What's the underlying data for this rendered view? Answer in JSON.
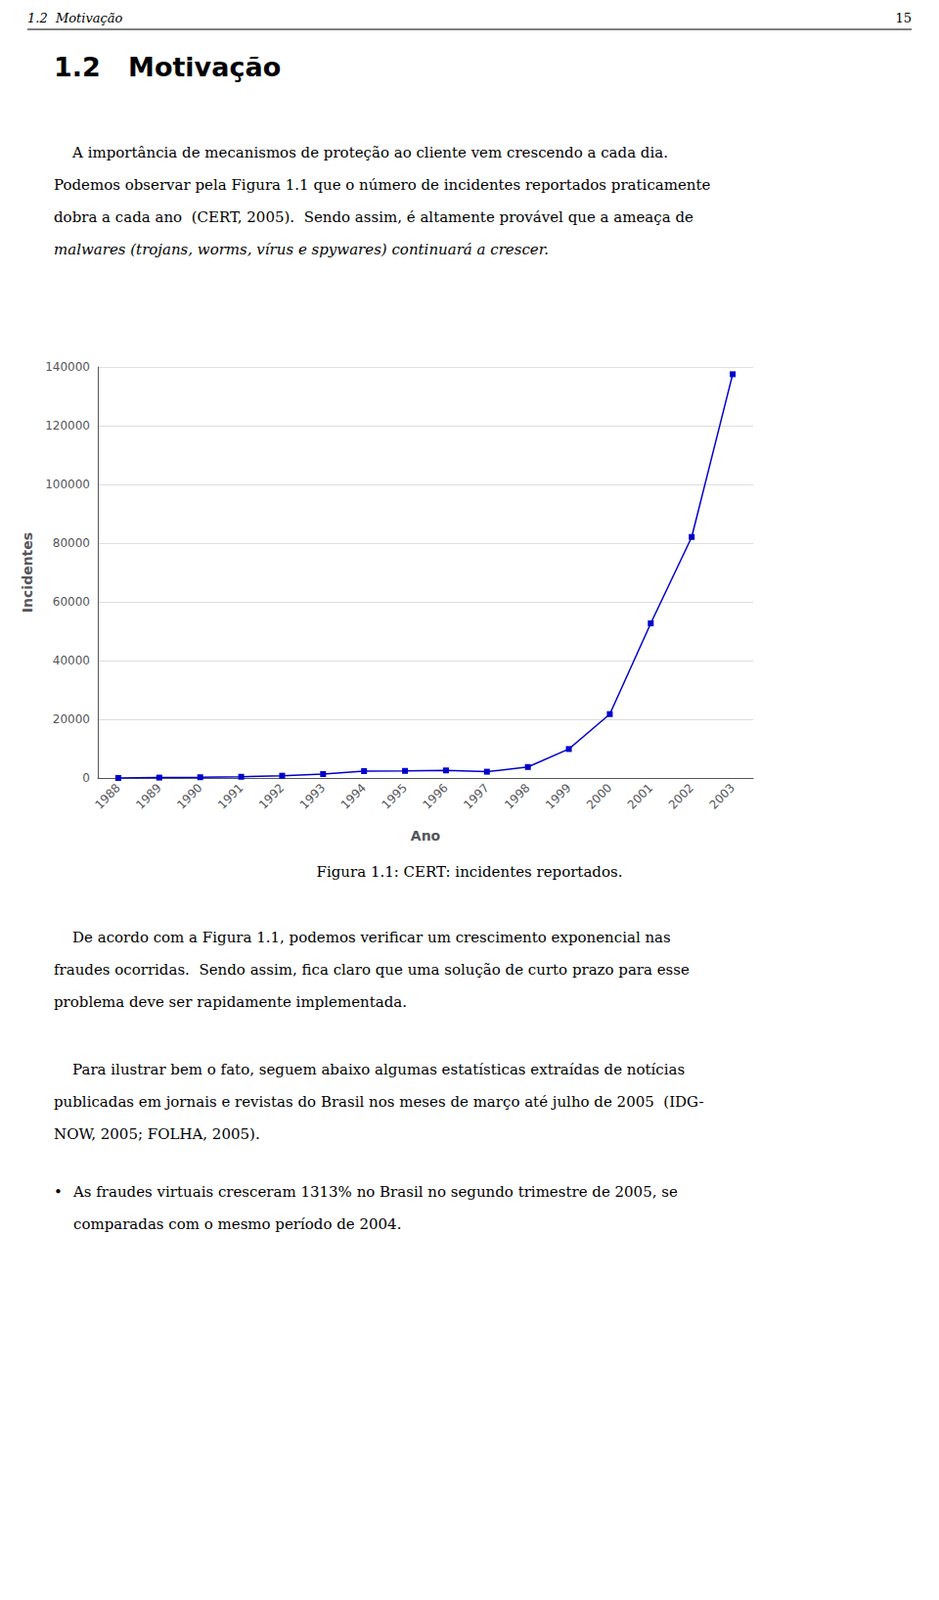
{
  "chart_data": {
    "type": "line",
    "title": "Figura 1.1: CERT: incidentes reportados.",
    "categories": [
      "1988",
      "1989",
      "1990",
      "1991",
      "1992",
      "1993",
      "1994",
      "1995",
      "1996",
      "1997",
      "1998",
      "1999",
      "2000",
      "2001",
      "2002",
      "2003"
    ],
    "values": [
      6,
      132,
      252,
      406,
      773,
      1334,
      2340,
      2412,
      2573,
      2134,
      3734,
      9859,
      21756,
      52658,
      82094,
      137529
    ],
    "color": "#0000CC",
    "marker": "square",
    "xlabel": "Ano",
    "ylabel": "Incidentes",
    "ylim": [
      0,
      140000
    ],
    "yticks": [
      0,
      20000,
      40000,
      60000,
      80000,
      100000,
      120000,
      140000
    ],
    "grid": true,
    "annotations": [
      "1.2  Motivação",
      "15",
      "1.2   Motivação",
      "    A importância de mecanismos de proteção ao cliente vem crescendo a cada dia.",
      "Podemos observar pela Figura 1.1 que o número de incidentes reportados praticamente",
      "dobra a cada ano  (CERT, 2005).  Sendo assim, é altamente provável que a ameaça de",
      "malwares (trojans, worms, vírus e spywares) continuará a crescer.",
      "    De acordo com a Figura 1.1, podemos verificar um crescimento exponencial nas",
      "fraudes ocorridas.  Sendo assim, fica claro que uma solução de curto prazo para esse",
      "problema deve ser rapidamente implementada.",
      "    Para ilustrar bem o fato, seguem abaixo algumas estatísticas extraídas de notícias",
      "publicadas em jornais e revistas do Brasil nos meses de março até julho de 2005  (IDG-",
      "NOW, 2005; FOLHA, 2005).",
      "•",
      "As fraudes virtuais cresceram 1313% no Brasil no segundo trimestre de 2005, se",
      "comparadas com o mesmo período de 2004."
    ]
  }
}
